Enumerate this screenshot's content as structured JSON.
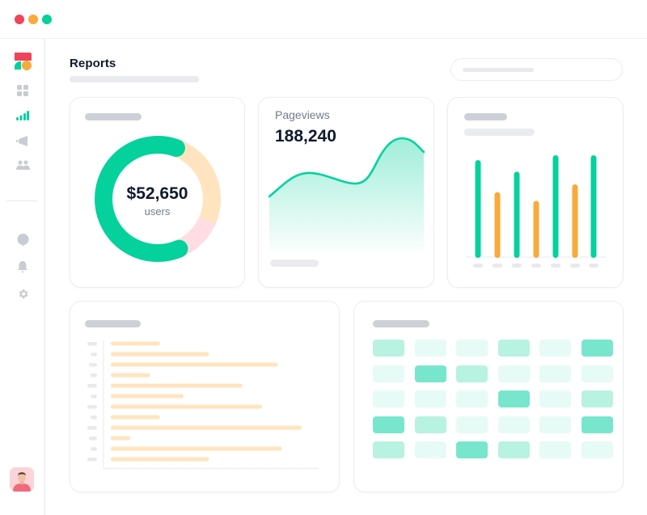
{
  "window": {
    "controls": [
      {
        "name": "close",
        "color": "#f0445a"
      },
      {
        "name": "minimize",
        "color": "#f8aa3a"
      },
      {
        "name": "maximize",
        "color": "#04d19c"
      }
    ]
  },
  "sidebar": {
    "logo": "brand-logo",
    "items": [
      {
        "icon": "dashboard-grid-icon",
        "active": false
      },
      {
        "icon": "bar-signal-icon",
        "active": true
      },
      {
        "icon": "megaphone-icon",
        "active": false
      },
      {
        "icon": "users-icon",
        "active": false
      }
    ],
    "bottom_items": [
      {
        "icon": "chat-bubble-icon"
      },
      {
        "icon": "bell-icon"
      },
      {
        "icon": "gear-icon"
      }
    ],
    "avatar": "user-avatar"
  },
  "header": {
    "title": "Reports",
    "search": {
      "placeholder": ""
    }
  },
  "colors": {
    "green": "#04d19c",
    "orange": "#f8aa3a",
    "peach": "#ffe4bf",
    "pink": "#ffdde2",
    "skeleton_dark": "#cdd0d6",
    "skeleton_light": "#eaebef",
    "text_dark": "#0f1a2e",
    "text_muted": "#727b8c"
  },
  "cards": {
    "donut": {
      "value": "$52,650",
      "label": "users"
    },
    "pageviews": {
      "label": "Pageviews",
      "value": "188,240"
    }
  },
  "chart_data": [
    {
      "type": "pie",
      "title": "",
      "center_value": "$52,650",
      "center_label": "users",
      "slices": [
        {
          "name": "segment-1",
          "value": 62,
          "color": "#04d19c"
        },
        {
          "name": "segment-2",
          "value": 26,
          "color": "#ffe4bf"
        },
        {
          "name": "segment-3",
          "value": 12,
          "color": "#ffdde2"
        }
      ]
    },
    {
      "type": "area",
      "title": "Pageviews",
      "headline": "188,240",
      "x": [
        0,
        1,
        2,
        3,
        4,
        5,
        6,
        7
      ],
      "values": [
        42,
        55,
        60,
        56,
        53,
        72,
        90,
        83
      ],
      "ylim": [
        0,
        100
      ],
      "color": "#04d19c"
    },
    {
      "type": "bar",
      "title": "",
      "categories": [
        "",
        "",
        "",
        "",
        "",
        "",
        ""
      ],
      "values": [
        100,
        67,
        88,
        58,
        105,
        75,
        105
      ],
      "colors": [
        "#04d19c",
        "#f8aa3a",
        "#04d19c",
        "#f8aa3a",
        "#04d19c",
        "#f8aa3a",
        "#04d19c"
      ],
      "ylim": [
        0,
        110
      ]
    },
    {
      "type": "bar",
      "orientation": "horizontal",
      "title": "",
      "categories": [
        "",
        "",
        "",
        "",
        "",
        "",
        "",
        "",
        "",
        "",
        "",
        ""
      ],
      "values": [
        25,
        50,
        85,
        20,
        67,
        37,
        77,
        25,
        97,
        10,
        87,
        50
      ],
      "xlim": [
        0,
        100
      ],
      "color": "#ffe4bf"
    },
    {
      "type": "heatmap",
      "title": "",
      "rows": 5,
      "cols": 6,
      "values": [
        [
          2,
          1,
          1,
          2,
          1,
          3
        ],
        [
          1,
          3,
          2,
          1,
          1,
          1
        ],
        [
          1,
          1,
          1,
          3,
          1,
          2
        ],
        [
          3,
          2,
          1,
          1,
          1,
          3
        ],
        [
          2,
          1,
          3,
          2,
          1,
          1
        ]
      ],
      "scale": {
        "1": "#e6fbf5",
        "2": "#b8f2e1",
        "3": "#78e6cc"
      }
    }
  ]
}
